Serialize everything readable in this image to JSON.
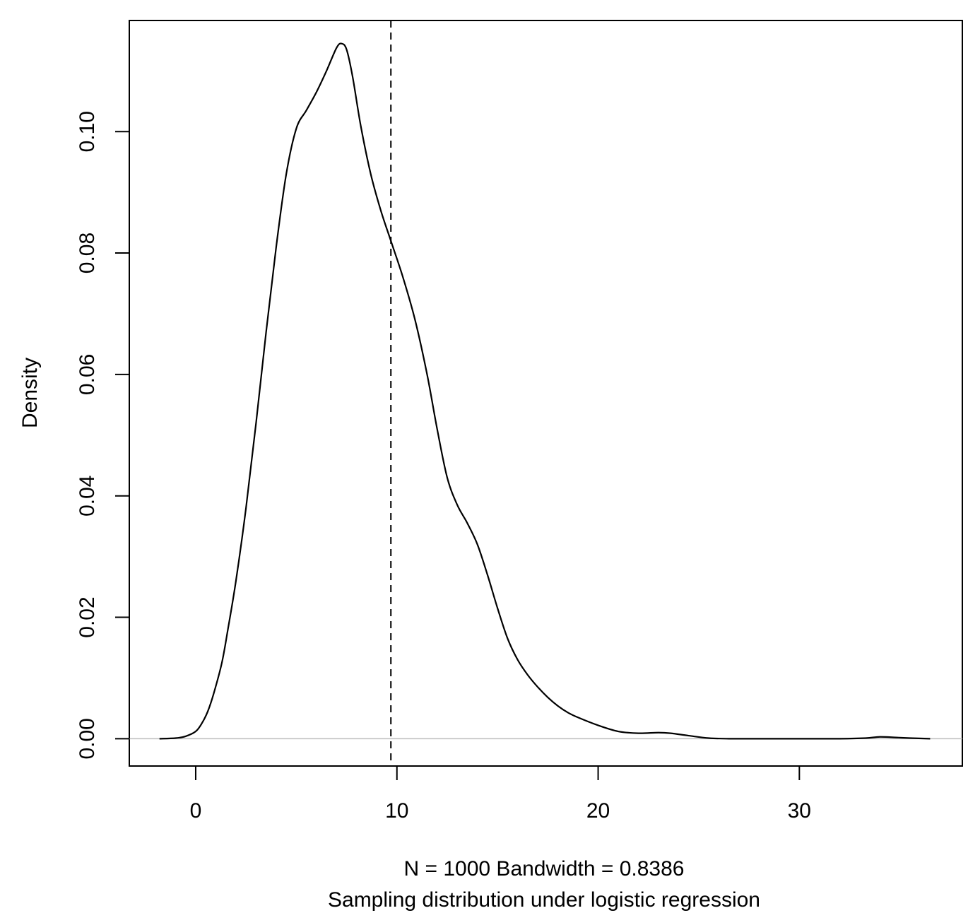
{
  "chart_data": {
    "type": "line",
    "title": "",
    "xlabel": "N = 1000   Bandwidth = 0.8386",
    "subtitle": "Sampling distribution under logistic regression",
    "ylabel": "Density",
    "xlim": [
      -3.3,
      38.1
    ],
    "ylim": [
      -0.0045,
      0.1183
    ],
    "x_ticks": [
      0,
      10,
      20,
      30
    ],
    "x_tick_labels": [
      "0",
      "10",
      "20",
      "30"
    ],
    "y_ticks": [
      0.0,
      0.02,
      0.04,
      0.06,
      0.08,
      0.1
    ],
    "y_tick_labels": [
      "0.00",
      "0.02",
      "0.04",
      "0.06",
      "0.08",
      "0.10"
    ],
    "grid": false,
    "legend": "none",
    "baseline_y": 0,
    "reference_line": {
      "x": 9.7,
      "style": "dashed"
    },
    "series": [
      {
        "x": [
          -1.8,
          -1.0,
          -0.5,
          0.0,
          0.3,
          0.6,
          0.9,
          1.3,
          1.6,
          2.0,
          2.5,
          3.0,
          3.5,
          4.0,
          4.5,
          5.0,
          5.5,
          6.0,
          6.5,
          7.0,
          7.25,
          7.5,
          7.8,
          8.2,
          8.7,
          9.2,
          9.7,
          10.3,
          10.9,
          11.5,
          12.0,
          12.5,
          13.0,
          13.5,
          14.0,
          14.5,
          15.0,
          15.5,
          16.0,
          16.5,
          17.0,
          17.5,
          18.0,
          18.5,
          19.0,
          20.0,
          21.0,
          22.0,
          23.0,
          23.6,
          24.5,
          25.5,
          26.5,
          28.0,
          30.0,
          32.0,
          33.3,
          34.0,
          34.8,
          35.5,
          36.5
        ],
        "y": [
          0.0,
          0.0001,
          0.0004,
          0.0012,
          0.0025,
          0.0045,
          0.0075,
          0.0125,
          0.018,
          0.026,
          0.038,
          0.052,
          0.067,
          0.081,
          0.093,
          0.1005,
          0.1035,
          0.1065,
          0.11,
          0.1138,
          0.1145,
          0.1135,
          0.109,
          0.101,
          0.093,
          0.087,
          0.082,
          0.076,
          0.069,
          0.06,
          0.051,
          0.043,
          0.0385,
          0.0355,
          0.032,
          0.027,
          0.0215,
          0.0165,
          0.013,
          0.0105,
          0.0085,
          0.0068,
          0.0054,
          0.0043,
          0.0035,
          0.0022,
          0.0012,
          0.0009,
          0.001,
          0.0009,
          0.0005,
          0.0001,
          0.0,
          0.0,
          0.0,
          0.0,
          0.0001,
          0.0003,
          0.0002,
          0.0001,
          0.0
        ]
      }
    ]
  }
}
